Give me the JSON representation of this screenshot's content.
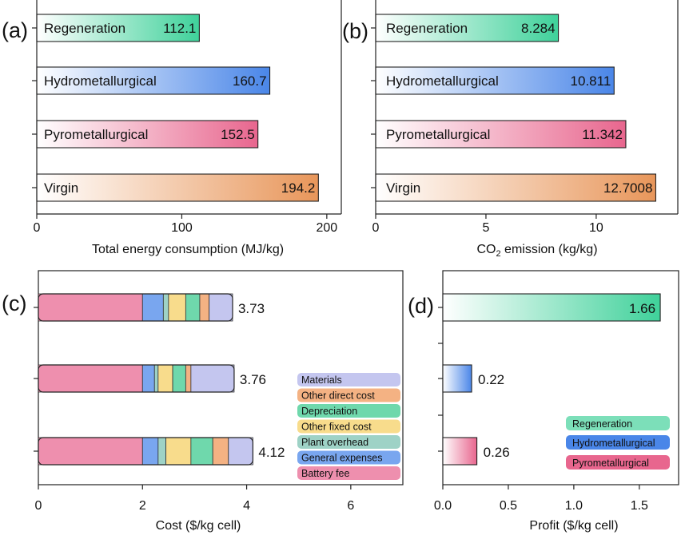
{
  "colors": {
    "regeneration": "#3fd19a",
    "hydrometallurgical": "#4a86e8",
    "pyrometallurgical": "#e8668e",
    "virgin": "#e8965a",
    "battery_fee": "#ee8fae",
    "general_expenses": "#79a6ef",
    "plant_overhead": "#9ed2c6",
    "other_fixed_cost": "#f8dc8c",
    "depreciation": "#6fd8ac",
    "other_direct_cost": "#f4b283",
    "materials": "#c4c6ef",
    "legend_regeneration": "#7cdfb9",
    "legend_hydrometallurgical": "#4a86e8",
    "legend_pyrometallurgical": "#e8668e"
  },
  "chart_data": [
    {
      "panel_label": "(a)",
      "type": "bar",
      "orientation": "horizontal",
      "categories": [
        "Regeneration",
        "Hydrometallurgical",
        "Pyrometallurgical",
        "Virgin"
      ],
      "values": [
        112.1,
        160.7,
        152.5,
        194.2
      ],
      "value_labels": [
        "112.1",
        "160.7",
        "152.5",
        "194.2"
      ],
      "xlabel": "Total energy consumption (MJ/kg)",
      "xlim": [
        0,
        210
      ],
      "xticks": [
        0,
        100,
        200
      ],
      "xtick_labels": [
        "0",
        "100",
        "200"
      ]
    },
    {
      "panel_label": "(b)",
      "type": "bar",
      "orientation": "horizontal",
      "categories": [
        "Regeneration",
        "Hydrometallurgical",
        "Pyrometallurgical",
        "Virgin"
      ],
      "values": [
        8.284,
        10.811,
        11.342,
        12.7008
      ],
      "value_labels": [
        "8.284",
        "10.811",
        "11.342",
        "12.7008"
      ],
      "xlabel_main": "CO",
      "xlabel_sub": "2",
      "xlabel_rest": " emission (kg/kg)",
      "xlim": [
        0,
        13.7
      ],
      "xticks": [
        0,
        5,
        10
      ],
      "xtick_labels": [
        "0",
        "5",
        "10"
      ]
    },
    {
      "panel_label": "(c)",
      "type": "stacked-bar",
      "orientation": "horizontal",
      "xlabel": "Cost ($/kg cell)",
      "xlim": [
        0,
        7
      ],
      "xticks": [
        0,
        2,
        4,
        6
      ],
      "xtick_labels": [
        "0",
        "2",
        "4",
        "6"
      ],
      "components": [
        "Battery fee",
        "General expenses",
        "Plant overhead",
        "Other fixed cost",
        "Depreciation",
        "Other direct cost",
        "Materials"
      ],
      "legend": [
        "Materials",
        "Other direct cost",
        "Depreciation",
        "Other fixed cost",
        "Plant overhead",
        "General expenses",
        "Battery fee"
      ],
      "bars": [
        {
          "segments": [
            2.0,
            0.4,
            0.1,
            0.33,
            0.27,
            0.18,
            0.45
          ],
          "total": 3.73,
          "total_label": "3.73"
        },
        {
          "segments": [
            2.0,
            0.23,
            0.07,
            0.28,
            0.25,
            0.1,
            0.83
          ],
          "total": 3.76,
          "total_label": "3.76"
        },
        {
          "segments": [
            2.0,
            0.3,
            0.15,
            0.48,
            0.42,
            0.3,
            0.47
          ],
          "total": 4.12,
          "total_label": "4.12"
        }
      ]
    },
    {
      "panel_label": "(d)",
      "type": "bar",
      "orientation": "horizontal",
      "categories": [
        "Regeneration",
        "Hydrometallurgical",
        "Pyrometallurgical"
      ],
      "values": [
        1.66,
        0.22,
        0.26
      ],
      "value_labels": [
        "1.66",
        "0.22",
        "0.26"
      ],
      "xlabel": "Profit ($/kg cell)",
      "xlim": [
        0,
        1.8
      ],
      "xticks": [
        0.0,
        0.5,
        1.0,
        1.5
      ],
      "xtick_labels": [
        "0.0",
        "0.5",
        "1.0",
        "1.5"
      ],
      "legend": [
        "Regeneration",
        "Hydrometallurgical",
        "Pyrometallurgical"
      ]
    }
  ]
}
